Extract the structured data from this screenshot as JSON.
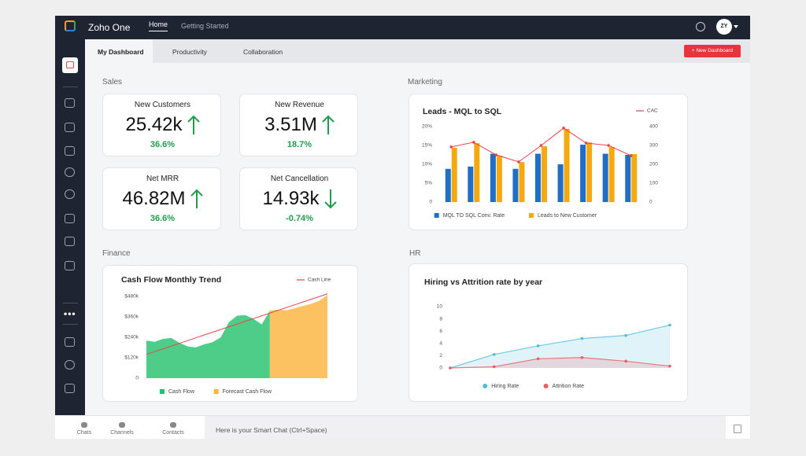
{
  "header": {
    "app_name": "Zoho One",
    "nav": [
      "Home",
      "Getting Started"
    ],
    "avatar": "ZY"
  },
  "tabs": [
    "My Dashboard",
    "Productivity",
    "Collaboration"
  ],
  "new_dashboard": "+ New Dashboard",
  "sales": {
    "title": "Sales",
    "kpis": [
      {
        "label": "New Customers",
        "value": "25.42k",
        "change": "36.6%",
        "trend": "up"
      },
      {
        "label": "New Revenue",
        "value": "3.51M",
        "change": "18.7%",
        "trend": "up"
      },
      {
        "label": "Net MRR",
        "value": "46.82M",
        "change": "36.6%",
        "trend": "up"
      },
      {
        "label": "Net Cancellation",
        "value": "14.93k",
        "change": "-0.74%",
        "trend": "down"
      }
    ]
  },
  "marketing": {
    "title": "Marketing",
    "chart": {
      "type": "bar-line",
      "title": "Leads - MQL to SQL",
      "ylim": [
        0,
        20
      ],
      "yticks": [
        0,
        {
          "value": 5,
          "label": "5%"
        },
        {
          "value": 10,
          "label": "10%"
        },
        {
          "value": 15,
          "label": "15%"
        },
        {
          "value": 20,
          "label": "20%"
        }
      ],
      "y2lim": [
        0,
        400
      ],
      "y2ticks": [
        0,
        100,
        200,
        300,
        400
      ],
      "series": [
        {
          "name": "MQL TO SQL Conv. Rate",
          "type": "bar",
          "color": "#1f6fc5",
          "values": [
            8.8,
            9.4,
            12.8,
            8.8,
            12.8,
            10,
            15.2,
            12.8,
            12.5
          ]
        },
        {
          "name": "Leads to New Customer",
          "type": "bar",
          "color": "#f5a90f",
          "values": [
            14.4,
            15.6,
            12.3,
            10.6,
            14.8,
            19.4,
            15.8,
            14.6,
            12.7
          ]
        },
        {
          "name": "CAC",
          "type": "line",
          "axis": "y2",
          "legend": "top-right",
          "color": "#e8434b",
          "values": [
            292,
            317,
            250,
            213,
            300,
            392,
            313,
            300,
            246
          ]
        }
      ]
    }
  },
  "finance": {
    "title": "Finance",
    "chart": {
      "type": "area",
      "title": "Cash Flow Monthly Trend",
      "ylim": [
        0,
        500
      ],
      "yticks": [
        0,
        {
          "value": 120,
          "label": "$120k"
        },
        {
          "value": 240,
          "label": "$240k"
        },
        {
          "value": 360,
          "label": "$360k"
        },
        {
          "value": 480,
          "label": "$480k"
        }
      ],
      "series": [
        {
          "name": "Cash Flow",
          "type": "area",
          "color": "#22c06a",
          "values": [
            222,
            215,
            232,
            238,
            210,
            188,
            182,
            200,
            212,
            240,
            330,
            368,
            372,
            350,
            318,
            398,
            null,
            null,
            null,
            null,
            null,
            null,
            null
          ]
        },
        {
          "name": "Forecast Cash Flow",
          "type": "area",
          "color": "#fbb33a",
          "values": [
            null,
            null,
            null,
            null,
            null,
            null,
            null,
            null,
            null,
            null,
            null,
            null,
            null,
            null,
            null,
            398,
            404,
            400,
            412,
            425,
            438,
            455,
            490
          ]
        },
        {
          "name": "Cash Line",
          "type": "line",
          "legend": "top-right",
          "color": "#e8434b",
          "values": [
            140,
            495
          ]
        }
      ]
    }
  },
  "hr": {
    "title": "HR",
    "chart": {
      "type": "area-line",
      "title": "Hiring vs Attrition rate by year",
      "ylim": [
        0,
        10
      ],
      "yticks": [
        0,
        2,
        4,
        6,
        8,
        10
      ],
      "series": [
        {
          "name": "Hiring Rate",
          "type": "area-line",
          "color": "#4dbfd9",
          "values": [
            0,
            2.2,
            3.6,
            4.8,
            5.3,
            7
          ]
        },
        {
          "name": "Attrition Rate",
          "type": "area-line",
          "color": "#ef5a5f",
          "values": [
            0,
            0.2,
            1.5,
            1.7,
            1.1,
            0.3
          ]
        }
      ]
    }
  },
  "bottom": {
    "tabs": [
      "Chats",
      "Channels",
      "Contacts"
    ],
    "chat_placeholder": "Here is your Smart Chat (Ctrl+Space)"
  }
}
